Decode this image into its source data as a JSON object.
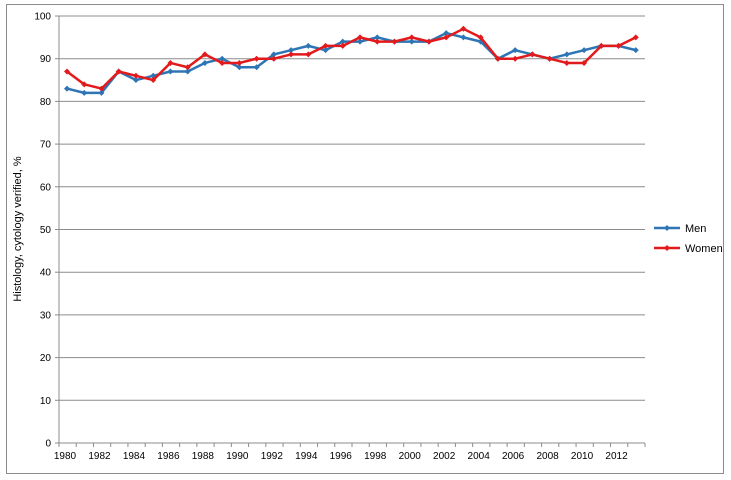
{
  "chart_data": {
    "type": "line",
    "title": "",
    "xlabel": "",
    "ylabel": "Histology, cytology verified, %",
    "ylim": [
      0,
      100
    ],
    "y_ticks": [
      0,
      10,
      20,
      30,
      40,
      50,
      60,
      70,
      80,
      90,
      100
    ],
    "x_tick_labels": [
      "1980",
      "1982",
      "1984",
      "1986",
      "1988",
      "1990",
      "1992",
      "1994",
      "1996",
      "1998",
      "2000",
      "2002",
      "2004",
      "2006",
      "2008",
      "2010",
      "2012"
    ],
    "grid": "horizontal",
    "legend_position": "right",
    "x": [
      1980,
      1981,
      1982,
      1983,
      1984,
      1985,
      1986,
      1987,
      1988,
      1989,
      1990,
      1991,
      1992,
      1993,
      1994,
      1995,
      1996,
      1997,
      1998,
      1999,
      2000,
      2001,
      2002,
      2003,
      2004,
      2005,
      2006,
      2007,
      2008,
      2009,
      2010,
      2011,
      2012,
      2013
    ],
    "series": [
      {
        "name": "Men",
        "color": "#2e75b6",
        "values": [
          83,
          82,
          82,
          87,
          85,
          86,
          87,
          87,
          89,
          90,
          88,
          88,
          91,
          92,
          93,
          92,
          94,
          94,
          95,
          94,
          94,
          94,
          96,
          95,
          94,
          90,
          92,
          91,
          90,
          91,
          92,
          93,
          93,
          92
        ]
      },
      {
        "name": "Women",
        "color": "#e31a1c",
        "values": [
          87,
          84,
          83,
          87,
          86,
          85,
          89,
          88,
          91,
          89,
          89,
          90,
          90,
          91,
          91,
          93,
          93,
          95,
          94,
          94,
          95,
          94,
          95,
          97,
          95,
          90,
          90,
          91,
          90,
          89,
          89,
          93,
          93,
          95
        ]
      }
    ]
  }
}
